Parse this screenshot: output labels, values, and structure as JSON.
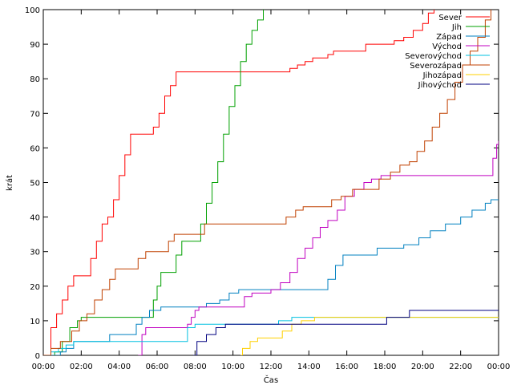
{
  "chart_data": {
    "type": "line",
    "xlabel": "Čas",
    "ylabel": "krát",
    "ylim": [
      0,
      100
    ],
    "xlim": [
      0,
      24
    ],
    "yticks": [
      0,
      10,
      20,
      30,
      40,
      50,
      60,
      70,
      80,
      90,
      100
    ],
    "yticklabels": [
      "0",
      "10",
      "20",
      "30",
      "40",
      "50",
      "60",
      "70",
      "80",
      "90",
      "100"
    ],
    "xticks": [
      0,
      2,
      4,
      6,
      8,
      10,
      12,
      14,
      16,
      18,
      20,
      22,
      24
    ],
    "xticklabels": [
      "00:00",
      "02:00",
      "04:00",
      "06:00",
      "08:00",
      "10:00",
      "12:00",
      "14:00",
      "16:00",
      "18:00",
      "20:00",
      "22:00",
      "00:00"
    ],
    "grid": false,
    "legend_position": "top-right",
    "series": [
      {
        "name": "Sever",
        "color": "#ff0000",
        "points": [
          [
            0.1,
            0
          ],
          [
            0.4,
            8
          ],
          [
            0.7,
            12
          ],
          [
            1.0,
            16
          ],
          [
            1.3,
            20
          ],
          [
            1.6,
            23
          ],
          [
            2.2,
            23
          ],
          [
            2.5,
            28
          ],
          [
            2.8,
            33
          ],
          [
            3.1,
            38
          ],
          [
            3.4,
            40
          ],
          [
            3.7,
            45
          ],
          [
            4.0,
            52
          ],
          [
            4.3,
            58
          ],
          [
            4.6,
            64
          ],
          [
            5.5,
            64
          ],
          [
            5.8,
            66
          ],
          [
            6.1,
            70
          ],
          [
            6.4,
            75
          ],
          [
            6.7,
            78
          ],
          [
            7.0,
            82
          ],
          [
            12.8,
            82
          ],
          [
            13.0,
            83
          ],
          [
            13.4,
            84
          ],
          [
            13.8,
            85
          ],
          [
            14.2,
            86
          ],
          [
            14.6,
            86
          ],
          [
            15.0,
            87
          ],
          [
            15.3,
            88
          ],
          [
            16.5,
            88
          ],
          [
            17.0,
            90
          ],
          [
            18.0,
            90
          ],
          [
            18.5,
            91
          ],
          [
            19.0,
            92
          ],
          [
            19.5,
            94
          ],
          [
            20.0,
            96
          ],
          [
            20.3,
            99
          ],
          [
            20.6,
            100
          ]
        ]
      },
      {
        "name": "Jih",
        "color": "#00a000",
        "points": [
          [
            0.0,
            0
          ],
          [
            0.6,
            1
          ],
          [
            1.0,
            4
          ],
          [
            1.4,
            8
          ],
          [
            1.8,
            10
          ],
          [
            2.0,
            11
          ],
          [
            5.6,
            11
          ],
          [
            5.8,
            16
          ],
          [
            6.0,
            20
          ],
          [
            6.2,
            24
          ],
          [
            6.8,
            24
          ],
          [
            7.0,
            29
          ],
          [
            7.3,
            33
          ],
          [
            8.0,
            33
          ],
          [
            8.3,
            38
          ],
          [
            8.6,
            44
          ],
          [
            8.9,
            50
          ],
          [
            9.2,
            56
          ],
          [
            9.5,
            64
          ],
          [
            9.8,
            72
          ],
          [
            10.1,
            78
          ],
          [
            10.4,
            85
          ],
          [
            10.7,
            90
          ],
          [
            11.0,
            94
          ],
          [
            11.3,
            97
          ],
          [
            11.6,
            100
          ]
        ]
      },
      {
        "name": "Západ",
        "color": "#0080c0",
        "points": [
          [
            0.0,
            0
          ],
          [
            0.9,
            1
          ],
          [
            1.2,
            2
          ],
          [
            1.6,
            4
          ],
          [
            3.2,
            4
          ],
          [
            3.5,
            6
          ],
          [
            4.6,
            6
          ],
          [
            4.9,
            9
          ],
          [
            5.2,
            11
          ],
          [
            5.6,
            13
          ],
          [
            6.2,
            14
          ],
          [
            8.2,
            14
          ],
          [
            8.6,
            15
          ],
          [
            9.3,
            16
          ],
          [
            9.8,
            18
          ],
          [
            10.3,
            19
          ],
          [
            14.8,
            19
          ],
          [
            15.0,
            22
          ],
          [
            15.4,
            26
          ],
          [
            15.8,
            29
          ],
          [
            17.3,
            29
          ],
          [
            17.6,
            31
          ],
          [
            19.0,
            32
          ],
          [
            19.8,
            34
          ],
          [
            20.4,
            36
          ],
          [
            21.2,
            38
          ],
          [
            22.0,
            40
          ],
          [
            22.6,
            42
          ],
          [
            23.3,
            44
          ],
          [
            23.6,
            45
          ],
          [
            24.0,
            45
          ]
        ]
      },
      {
        "name": "Východ",
        "color": "#c000c0",
        "points": [
          [
            5.0,
            0
          ],
          [
            5.2,
            6
          ],
          [
            5.4,
            8
          ],
          [
            7.6,
            9
          ],
          [
            7.8,
            11
          ],
          [
            8.0,
            13
          ],
          [
            8.2,
            14
          ],
          [
            10.4,
            14
          ],
          [
            10.6,
            17
          ],
          [
            11.0,
            18
          ],
          [
            12.0,
            19
          ],
          [
            12.5,
            21
          ],
          [
            13.0,
            24
          ],
          [
            13.4,
            28
          ],
          [
            13.8,
            31
          ],
          [
            14.2,
            34
          ],
          [
            14.6,
            37
          ],
          [
            15.0,
            39
          ],
          [
            15.5,
            42
          ],
          [
            15.9,
            46
          ],
          [
            16.4,
            48
          ],
          [
            16.9,
            50
          ],
          [
            17.3,
            51
          ],
          [
            17.8,
            52
          ],
          [
            23.5,
            52
          ],
          [
            23.7,
            57
          ],
          [
            23.9,
            61
          ],
          [
            24.0,
            62
          ]
        ]
      },
      {
        "name": "Severovýchod",
        "color": "#00c0e0",
        "points": [
          [
            0.1,
            0
          ],
          [
            0.4,
            1
          ],
          [
            0.8,
            2
          ],
          [
            1.2,
            3
          ],
          [
            1.6,
            4
          ],
          [
            7.3,
            4
          ],
          [
            7.6,
            8
          ],
          [
            8.0,
            9
          ],
          [
            9.5,
            9
          ],
          [
            12.4,
            10
          ],
          [
            13.1,
            11
          ],
          [
            14.0,
            11
          ],
          [
            15.2,
            11
          ],
          [
            18.0,
            11
          ],
          [
            19.0,
            11
          ],
          [
            24.0,
            11
          ]
        ]
      },
      {
        "name": "Severozápad",
        "color": "#c04000",
        "points": [
          [
            0.0,
            0
          ],
          [
            0.4,
            2
          ],
          [
            0.9,
            4
          ],
          [
            1.5,
            7
          ],
          [
            1.9,
            10
          ],
          [
            2.3,
            12
          ],
          [
            2.7,
            16
          ],
          [
            3.1,
            19
          ],
          [
            3.5,
            22
          ],
          [
            3.8,
            25
          ],
          [
            4.7,
            25
          ],
          [
            5.0,
            28
          ],
          [
            5.4,
            30
          ],
          [
            6.3,
            30
          ],
          [
            6.6,
            33
          ],
          [
            6.9,
            35
          ],
          [
            8.2,
            35
          ],
          [
            8.5,
            38
          ],
          [
            12.4,
            38
          ],
          [
            12.8,
            40
          ],
          [
            13.3,
            42
          ],
          [
            13.7,
            43
          ],
          [
            14.7,
            43
          ],
          [
            15.2,
            45
          ],
          [
            15.7,
            46
          ],
          [
            16.3,
            48
          ],
          [
            17.3,
            48
          ],
          [
            17.7,
            51
          ],
          [
            18.3,
            53
          ],
          [
            18.8,
            55
          ],
          [
            19.3,
            56
          ],
          [
            19.7,
            59
          ],
          [
            20.1,
            62
          ],
          [
            20.5,
            66
          ],
          [
            20.9,
            70
          ],
          [
            21.3,
            74
          ],
          [
            21.7,
            79
          ],
          [
            22.1,
            84
          ],
          [
            22.5,
            88
          ],
          [
            22.9,
            92
          ],
          [
            23.3,
            97
          ],
          [
            23.6,
            100
          ]
        ]
      },
      {
        "name": "Jihozápad",
        "color": "#ffd000",
        "points": [
          [
            10.4,
            0
          ],
          [
            10.5,
            2
          ],
          [
            10.9,
            4
          ],
          [
            11.3,
            5
          ],
          [
            12.1,
            5
          ],
          [
            12.6,
            7
          ],
          [
            13.1,
            9
          ],
          [
            13.6,
            10
          ],
          [
            14.3,
            11
          ],
          [
            18.5,
            11
          ],
          [
            19.1,
            11
          ],
          [
            24.0,
            11
          ]
        ]
      },
      {
        "name": "Jihovýchod",
        "color": "#000080",
        "points": [
          [
            7.9,
            0
          ],
          [
            8.1,
            4
          ],
          [
            8.6,
            6
          ],
          [
            9.1,
            8
          ],
          [
            9.6,
            9
          ],
          [
            13.0,
            9
          ],
          [
            17.9,
            9
          ],
          [
            18.1,
            11
          ],
          [
            19.0,
            11
          ],
          [
            19.3,
            13
          ],
          [
            24.0,
            13
          ]
        ]
      }
    ]
  }
}
